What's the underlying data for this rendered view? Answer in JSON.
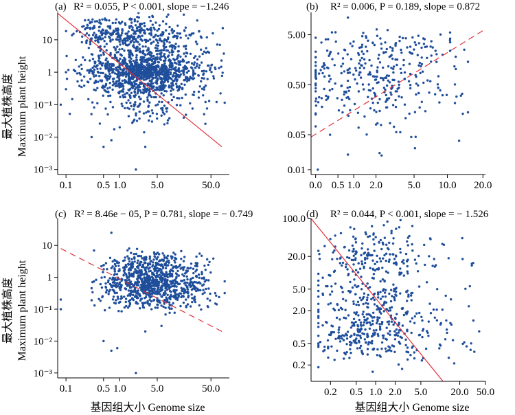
{
  "figure": {
    "y_axis_title_cn": "最大植株高度",
    "y_axis_title_en": "Maximum plant height",
    "x_axis_title": "基因组大小 Genome size"
  },
  "colors": {
    "points": "#1f4e9b",
    "regression": "#e0303a",
    "axes": "#000000"
  },
  "chart_data": [
    {
      "type": "scatter",
      "panel": "(a)",
      "stats_text": "R² = 0.055, P < 0.001, slope = −1.246",
      "x_scale": "log",
      "y_scale": "log",
      "xlim": [
        0.07,
        110
      ],
      "ylim": [
        0.0007,
        70
      ],
      "x_ticks": [
        0.1,
        0.5,
        1.0,
        5.0,
        50.0
      ],
      "x_tick_labels": [
        "0.1",
        "0.5",
        "1.0",
        "5.0",
        "50.0"
      ],
      "y_ticks": [
        0.001,
        0.01,
        0.1,
        1,
        10
      ],
      "y_tick_labels": [
        "10⁻³",
        "10⁻²",
        "10⁻¹",
        "1",
        "10"
      ],
      "regression": {
        "style": "solid",
        "x": [
          0.07,
          80
        ],
        "y": [
          65,
          0.005
        ]
      },
      "points_cloud": {
        "n": 1500,
        "x_range": [
          0.1,
          90
        ],
        "x_center": 3.0,
        "x_spread": 0.48,
        "y_bands": [
          [
            1.0,
            0.19,
            0.45
          ],
          [
            0.35,
            0.16,
            0.12
          ],
          [
            15,
            0.25,
            0.15
          ],
          [
            0.12,
            0.35,
            0.1
          ],
          [
            3.0,
            0.22,
            0.18
          ]
        ],
        "clouds": [
          [
            [
              0.2,
              2.5
            ],
            [
              8,
              45
            ],
            120
          ]
        ],
        "outliers": [
          [
            0.08,
            0.1
          ],
          [
            0.1,
            1.0
          ],
          [
            0.1,
            0.3
          ],
          [
            0.3,
            0.01
          ],
          [
            0.5,
            0.005
          ],
          [
            0.7,
            0.008
          ],
          [
            1.0,
            0.02
          ],
          [
            2.0,
            0.001
          ],
          [
            3.0,
            0.005
          ],
          [
            4.0,
            0.03
          ],
          [
            0.6,
            0.05
          ],
          [
            8,
            60
          ]
        ]
      }
    },
    {
      "type": "scatter",
      "panel": "(b)",
      "stats_text": "R² = 0.006, P = 0.189, slope = 0.872",
      "x_scale": "log1p",
      "y_scale": "log",
      "xlim": [
        -0.08,
        21
      ],
      "ylim": [
        0.008,
        14
      ],
      "x_ticks": [
        0.0,
        0.5,
        1.0,
        2.0,
        5.0,
        10.0,
        20.0
      ],
      "x_tick_labels": [
        "0.0",
        "0.5",
        "1.0",
        "2.0",
        "5.0",
        "10.0",
        "20.0"
      ],
      "y_ticks": [
        0.01,
        0.05,
        0.5,
        5.0
      ],
      "y_tick_labels": [
        "0.01",
        "0.05",
        "0.50",
        "5.00"
      ],
      "regression": {
        "style": "dashed",
        "x": [
          -0.08,
          21
        ],
        "y": [
          0.045,
          6.5
        ]
      },
      "points_cloud": {
        "n": 360,
        "x_range": [
          0.0,
          15
        ],
        "x_center": 2.0,
        "x_spread": 0.32,
        "y_bands": [
          [
            1.0,
            0.3,
            0.5
          ],
          [
            3.0,
            0.15,
            0.2
          ],
          [
            0.3,
            0.2,
            0.2
          ],
          [
            0.1,
            0.3,
            0.1
          ]
        ],
        "clouds": [],
        "outliers": [
          [
            0.04,
            0.01
          ],
          [
            0.8,
            0.02
          ],
          [
            0.8,
            11
          ],
          [
            2,
            0.08
          ],
          [
            0.3,
            0.05
          ]
        ]
      }
    },
    {
      "type": "scatter",
      "panel": "(c)",
      "stats_text": "R² = 8.46e − 05, P = 0.781, slope = − 0.749",
      "x_scale": "log",
      "y_scale": "log",
      "xlim": [
        0.07,
        110
      ],
      "ylim": [
        0.0007,
        70
      ],
      "x_ticks": [
        0.1,
        0.5,
        1.0,
        5.0,
        50.0
      ],
      "x_tick_labels": [
        "0.1",
        "0.5",
        "1.0",
        "5.0",
        "50.0"
      ],
      "y_ticks": [
        0.001,
        0.01,
        0.1,
        1,
        10
      ],
      "y_tick_labels": [
        "10⁻³",
        "10⁻²",
        "10⁻¹",
        "1",
        "10"
      ],
      "regression": {
        "style": "dashed",
        "x": [
          0.08,
          80
        ],
        "y": [
          8,
          0.02
        ]
      },
      "points_cloud": {
        "n": 1000,
        "x_range": [
          0.3,
          90
        ],
        "x_center": 4.0,
        "x_spread": 0.42,
        "y_bands": [
          [
            0.6,
            0.25,
            0.6
          ],
          [
            0.2,
            0.2,
            0.15
          ],
          [
            2.5,
            0.2,
            0.25
          ]
        ],
        "clouds": [],
        "outliers": [
          [
            0.08,
            0.1
          ],
          [
            0.08,
            0.2
          ],
          [
            0.5,
            0.01
          ],
          [
            0.7,
            0.005
          ],
          [
            0.9,
            0.006
          ],
          [
            2.0,
            0.001
          ],
          [
            0.7,
            25
          ],
          [
            1.5,
            8
          ],
          [
            6,
            0.03
          ],
          [
            3,
            0.02
          ]
        ]
      }
    },
    {
      "type": "scatter",
      "panel": "(d)",
      "stats_text": "R² = 0.044, P < 0.001, slope = − 1.526",
      "x_scale": "log",
      "y_scale": "log",
      "xlim": [
        0.1,
        50
      ],
      "ylim": [
        0.1,
        100
      ],
      "x_ticks": [
        0.2,
        0.5,
        1.0,
        2.0,
        5.0,
        20.0,
        50.0
      ],
      "x_tick_labels": [
        "0.2",
        "0.5",
        "1.0",
        "2.0",
        "5.0",
        "20.0",
        "50.0"
      ],
      "y_ticks": [
        0.2,
        0.5,
        2.0,
        5.0,
        20.0,
        100.0
      ],
      "y_tick_labels": [
        "0.2",
        "0.5",
        "2.0",
        "5.0",
        "20.0",
        "100.0"
      ],
      "regression": {
        "style": "solid",
        "x": [
          0.1,
          11
        ],
        "y": [
          100,
          0.1
        ]
      },
      "points_cloud": {
        "n": 650,
        "x_range": [
          0.13,
          40
        ],
        "x_center": 0.9,
        "x_spread": 0.45,
        "y_bands": [
          [
            20,
            0.25,
            0.3
          ],
          [
            3,
            0.28,
            0.3
          ],
          [
            1.0,
            0.2,
            0.2
          ],
          [
            0.5,
            0.2,
            0.2
          ]
        ],
        "clouds": [],
        "outliers": [
          [
            30,
            0.5
          ],
          [
            0.13,
            0.5
          ],
          [
            0.9,
            0.15
          ]
        ]
      }
    }
  ]
}
